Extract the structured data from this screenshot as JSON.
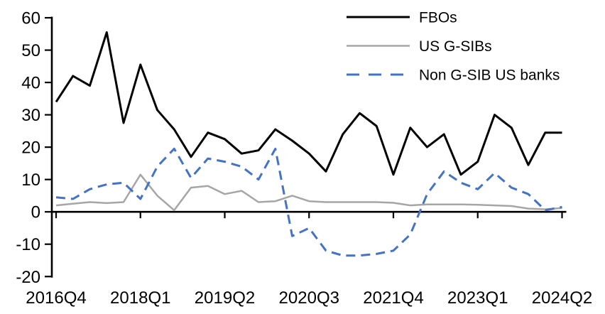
{
  "chart_data": {
    "type": "line",
    "title": "",
    "xlabel": "",
    "ylabel": "",
    "grid": false,
    "legend_position": "top-right",
    "ylim": [
      -20,
      60
    ],
    "y_tick_step": 10,
    "y_ticks": [
      60,
      50,
      40,
      30,
      20,
      10,
      0,
      -10,
      -20
    ],
    "x_ticks": [
      "2016Q4",
      "2018Q1",
      "2019Q2",
      "2020Q3",
      "2021Q4",
      "2023Q1",
      "2024Q2"
    ],
    "categories": [
      "2016Q4",
      "2017Q1",
      "2017Q2",
      "2017Q3",
      "2017Q4",
      "2018Q1",
      "2018Q2",
      "2018Q3",
      "2018Q4",
      "2019Q1",
      "2019Q2",
      "2019Q3",
      "2019Q4",
      "2020Q1",
      "2020Q2",
      "2020Q3",
      "2020Q4",
      "2021Q1",
      "2021Q2",
      "2021Q3",
      "2021Q4",
      "2022Q1",
      "2022Q2",
      "2022Q3",
      "2022Q4",
      "2023Q1",
      "2023Q2",
      "2023Q3",
      "2023Q4",
      "2024Q1",
      "2024Q2"
    ],
    "series": [
      {
        "name": "FBOs",
        "color": "#000000",
        "line_style": "solid",
        "values": [
          34,
          42,
          39,
          55.5,
          27.5,
          45.5,
          31.5,
          25.5,
          17,
          24.5,
          22.5,
          18,
          19,
          25.5,
          22,
          18,
          12.5,
          24,
          30.5,
          26.5,
          11.5,
          26,
          20,
          24,
          11.5,
          15.5,
          30,
          26,
          14.5,
          24.5,
          24.5
        ]
      },
      {
        "name": "US G-SIBs",
        "color": "#A6A6A6",
        "line_style": "solid",
        "values": [
          2,
          2.5,
          3,
          2.7,
          3,
          11.5,
          5,
          0.5,
          7.5,
          8,
          5.5,
          6.5,
          3,
          3.3,
          5,
          3.3,
          3,
          3,
          3,
          3,
          2.8,
          2,
          2.3,
          2.3,
          2.3,
          2.2,
          2,
          1.8,
          1,
          0.8,
          1.2
        ]
      },
      {
        "name": "Non G-SIB US banks",
        "color": "#4472C4",
        "line_style": "dashed",
        "values": [
          4.5,
          4,
          7,
          8.5,
          9,
          4,
          14,
          19.5,
          10.5,
          16.5,
          15.5,
          14,
          10,
          19.5,
          -7.5,
          -5,
          -12,
          -13.5,
          -13.5,
          -13,
          -12,
          -7,
          5.5,
          12.5,
          9,
          7,
          12,
          7.5,
          5.5,
          0.5,
          1.5
        ]
      }
    ]
  }
}
